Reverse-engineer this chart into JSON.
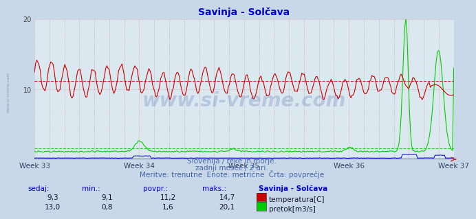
{
  "title": "Savinja - Solčava",
  "background_color": "#c8d8e8",
  "plot_background": "#dce8f0",
  "grid_color_v": "#d08080",
  "grid_color_h": "#d08080",
  "x_labels": [
    "Week 33",
    "Week 34",
    "Week 35",
    "Week 36",
    "Week 37"
  ],
  "ylim": [
    0,
    20
  ],
  "ytick_vals": [
    10,
    20
  ],
  "temp_color": "#cc0000",
  "flow_color": "#00cc00",
  "height_color": "#0000dd",
  "avg_temp": 11.2,
  "avg_flow": 1.6,
  "watermark": "www.si-vreme.com",
  "subtitle1": "Slovenija / reke in morje.",
  "subtitle2": "zadnji mesec / 2 uri.",
  "subtitle3": "Meritve: trenutne  Enote: metrične  Črta: povprečje",
  "footer_col1_label": "sedaj:",
  "footer_col2_label": "min.:",
  "footer_col3_label": "povpr.:",
  "footer_col4_label": "maks.:",
  "footer_col5_label": "Savinja - Solčava",
  "temp_sedaj": "9,3",
  "temp_min": "9,1",
  "temp_povpr": "11,2",
  "temp_maks": "14,7",
  "flow_sedaj": "13,0",
  "flow_min": "0,8",
  "flow_povpr": "1,6",
  "flow_maks": "20,1",
  "n_points": 360
}
